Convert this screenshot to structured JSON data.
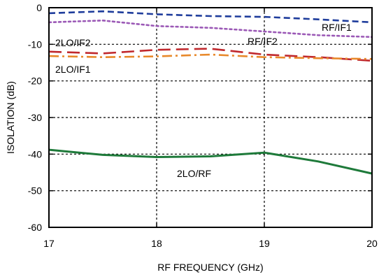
{
  "chart_data": {
    "type": "line",
    "xlabel": "RF FREQUENCY (GHz)",
    "ylabel": "ISOLATION  (dB)",
    "xlim": [
      17,
      20
    ],
    "ylim": [
      -60,
      0
    ],
    "x_ticks": [
      17,
      18,
      19,
      20
    ],
    "y_ticks": [
      0,
      -10,
      -20,
      -30,
      -40,
      -50,
      -60
    ],
    "grid": true,
    "series": [
      {
        "name": "RF/IF1",
        "color": "#1f3d9c",
        "style": "dashed",
        "x": [
          17.0,
          17.5,
          18.0,
          18.5,
          19.0,
          19.5,
          20.0
        ],
        "y": [
          -1.5,
          -1.0,
          -1.8,
          -2.3,
          -2.5,
          -3.2,
          -4.0
        ]
      },
      {
        "name": "RF/IF2",
        "color": "#9b59b6",
        "style": "dotted",
        "x": [
          17.0,
          17.5,
          18.0,
          18.5,
          19.0,
          19.5,
          20.0
        ],
        "y": [
          -4.0,
          -3.5,
          -5.0,
          -5.5,
          -6.5,
          -7.5,
          -8.0
        ]
      },
      {
        "name": "2LO/IF2",
        "color": "#c0282d",
        "style": "long-dash",
        "x": [
          17.0,
          17.5,
          18.0,
          18.5,
          19.0,
          19.5,
          20.0
        ],
        "y": [
          -12.0,
          -12.5,
          -11.5,
          -11.2,
          -12.8,
          -13.5,
          -14.5
        ]
      },
      {
        "name": "2LO/IF1",
        "color": "#e8892b",
        "style": "dash-dot",
        "x": [
          17.0,
          17.5,
          18.0,
          18.5,
          19.0,
          19.5,
          20.0
        ],
        "y": [
          -13.2,
          -13.5,
          -13.3,
          -12.8,
          -13.5,
          -13.8,
          -14.0
        ]
      },
      {
        "name": "2LO/RF",
        "color": "#1e7a3a",
        "style": "solid",
        "x": [
          17.0,
          17.5,
          18.0,
          18.5,
          19.0,
          19.5,
          20.0
        ],
        "y": [
          -38.8,
          -40.2,
          -40.8,
          -40.6,
          -39.6,
          -42.0,
          -45.3
        ]
      }
    ]
  }
}
